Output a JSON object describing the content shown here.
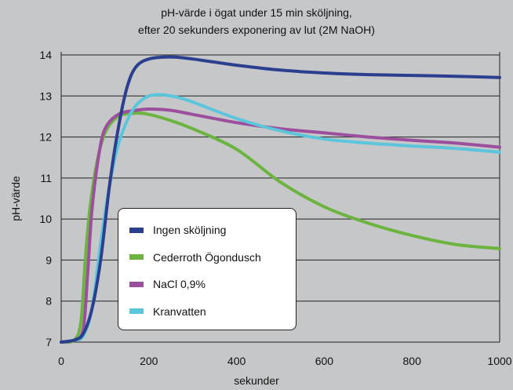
{
  "chart_data": {
    "type": "line",
    "title": "pH-värde i ögat under 15 min sköljning,",
    "subtitle": "efter 20 sekunders exponering av lut (2M NaOH)",
    "xlabel": "sekunder",
    "ylabel": "pH-värde",
    "xlim": [
      0,
      1000
    ],
    "ylim": [
      7,
      14.2
    ],
    "x_ticks": [
      "0",
      "200",
      "400",
      "600",
      "800",
      "1000"
    ],
    "y_ticks": [
      "7",
      "8",
      "9",
      "10",
      "11",
      "12",
      "13",
      "14"
    ],
    "grid": "horizontal",
    "legend_position": "bottom-left",
    "background": "#c6c7c9",
    "series": [
      {
        "name": "Ingen sköljning",
        "color": "#2c3f8f",
        "points": [
          [
            0,
            7.0
          ],
          [
            30,
            7.05
          ],
          [
            50,
            7.2
          ],
          [
            70,
            7.8
          ],
          [
            90,
            9.0
          ],
          [
            110,
            10.8
          ],
          [
            130,
            12.2
          ],
          [
            150,
            13.2
          ],
          [
            170,
            13.7
          ],
          [
            200,
            13.9
          ],
          [
            250,
            13.95
          ],
          [
            300,
            13.9
          ],
          [
            400,
            13.75
          ],
          [
            500,
            13.63
          ],
          [
            600,
            13.56
          ],
          [
            700,
            13.52
          ],
          [
            800,
            13.5
          ],
          [
            900,
            13.48
          ],
          [
            1000,
            13.45
          ]
        ]
      },
      {
        "name": "Cederroth Ögondusch",
        "color": "#6cb33f",
        "points": [
          [
            0,
            7.0
          ],
          [
            30,
            7.05
          ],
          [
            45,
            7.5
          ],
          [
            55,
            9.0
          ],
          [
            65,
            10.2
          ],
          [
            80,
            11.3
          ],
          [
            100,
            12.1
          ],
          [
            130,
            12.5
          ],
          [
            170,
            12.58
          ],
          [
            200,
            12.55
          ],
          [
            250,
            12.4
          ],
          [
            300,
            12.2
          ],
          [
            400,
            11.7
          ],
          [
            500,
            10.9
          ],
          [
            600,
            10.3
          ],
          [
            700,
            9.9
          ],
          [
            800,
            9.6
          ],
          [
            900,
            9.38
          ],
          [
            1000,
            9.28
          ]
        ]
      },
      {
        "name": "NaCl 0,9%",
        "color": "#9b4f9c",
        "points": [
          [
            0,
            7.0
          ],
          [
            30,
            7.05
          ],
          [
            50,
            7.3
          ],
          [
            60,
            8.6
          ],
          [
            70,
            10.2
          ],
          [
            85,
            11.5
          ],
          [
            100,
            12.2
          ],
          [
            130,
            12.55
          ],
          [
            170,
            12.65
          ],
          [
            200,
            12.68
          ],
          [
            250,
            12.65
          ],
          [
            300,
            12.55
          ],
          [
            400,
            12.35
          ],
          [
            500,
            12.2
          ],
          [
            600,
            12.1
          ],
          [
            700,
            12.0
          ],
          [
            800,
            11.92
          ],
          [
            900,
            11.85
          ],
          [
            1000,
            11.75
          ]
        ]
      },
      {
        "name": "Kranvatten",
        "color": "#5bc5db",
        "points": [
          [
            0,
            7.0
          ],
          [
            30,
            7.05
          ],
          [
            50,
            7.15
          ],
          [
            70,
            7.8
          ],
          [
            90,
            9.4
          ],
          [
            110,
            10.8
          ],
          [
            130,
            11.8
          ],
          [
            160,
            12.6
          ],
          [
            190,
            12.95
          ],
          [
            220,
            13.03
          ],
          [
            260,
            12.98
          ],
          [
            300,
            12.85
          ],
          [
            400,
            12.45
          ],
          [
            500,
            12.15
          ],
          [
            600,
            11.95
          ],
          [
            700,
            11.85
          ],
          [
            800,
            11.78
          ],
          [
            900,
            11.72
          ],
          [
            1000,
            11.63
          ]
        ]
      }
    ]
  }
}
